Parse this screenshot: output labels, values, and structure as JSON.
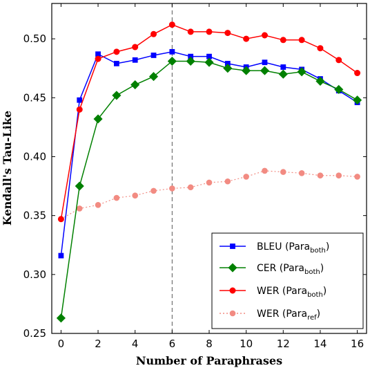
{
  "chart_data": {
    "type": "line",
    "xlabel": "Number of Paraphrases",
    "ylabel": "Kendall's Tau-Like",
    "xlim": [
      -0.5,
      16.5
    ],
    "ylim": [
      0.25,
      0.53
    ],
    "xticks": [
      0,
      2,
      4,
      6,
      8,
      10,
      12,
      14,
      16
    ],
    "yticks": [
      0.25,
      0.3,
      0.35,
      0.4,
      0.45,
      0.5
    ],
    "ytick_labels": [
      "0.25",
      "0.30",
      "0.35",
      "0.40",
      "0.45",
      "0.50"
    ],
    "grid": false,
    "legend_position": "bottom-right",
    "reference_line": {
      "x": 6,
      "style": "dashed"
    },
    "x": [
      0,
      1,
      2,
      3,
      4,
      5,
      6,
      7,
      8,
      9,
      10,
      11,
      12,
      13,
      14,
      15,
      16
    ],
    "series": [
      {
        "name": "BLEU (Para_both)",
        "label_main": "BLEU (Para",
        "label_sub": "both",
        "label_end": ")",
        "color": "#0000ff",
        "marker": "square",
        "linestyle": "solid",
        "values": [
          0.316,
          0.448,
          0.487,
          0.479,
          0.482,
          0.486,
          0.489,
          0.485,
          0.485,
          0.479,
          0.476,
          0.48,
          0.476,
          0.474,
          0.466,
          0.456,
          0.446
        ]
      },
      {
        "name": "CER (Para_both)",
        "label_main": "CER (Para",
        "label_sub": "both",
        "label_end": ")",
        "color": "#008000",
        "marker": "diamond",
        "linestyle": "solid",
        "values": [
          0.263,
          0.375,
          0.432,
          0.452,
          0.461,
          0.468,
          0.481,
          0.481,
          0.48,
          0.475,
          0.473,
          0.473,
          0.47,
          0.472,
          0.464,
          0.457,
          0.448
        ]
      },
      {
        "name": "WER (Para_both)",
        "label_main": "WER (Para",
        "label_sub": "both",
        "label_end": ")",
        "color": "#ff0000",
        "marker": "circle",
        "linestyle": "solid",
        "values": [
          0.347,
          0.44,
          0.483,
          0.489,
          0.493,
          0.504,
          0.512,
          0.506,
          0.506,
          0.505,
          0.5,
          0.503,
          0.499,
          0.499,
          0.492,
          0.482,
          0.471
        ]
      },
      {
        "name": "WER (Para_ref)",
        "label_main": "WER (Para",
        "label_sub": "ref",
        "label_end": ")",
        "color": "#f28b82",
        "marker": "circle",
        "linestyle": "dotted",
        "values": [
          0.347,
          0.356,
          0.359,
          0.365,
          0.367,
          0.371,
          0.373,
          0.374,
          0.378,
          0.379,
          0.383,
          0.388,
          0.387,
          0.386,
          0.384,
          0.384,
          0.383
        ]
      }
    ]
  }
}
